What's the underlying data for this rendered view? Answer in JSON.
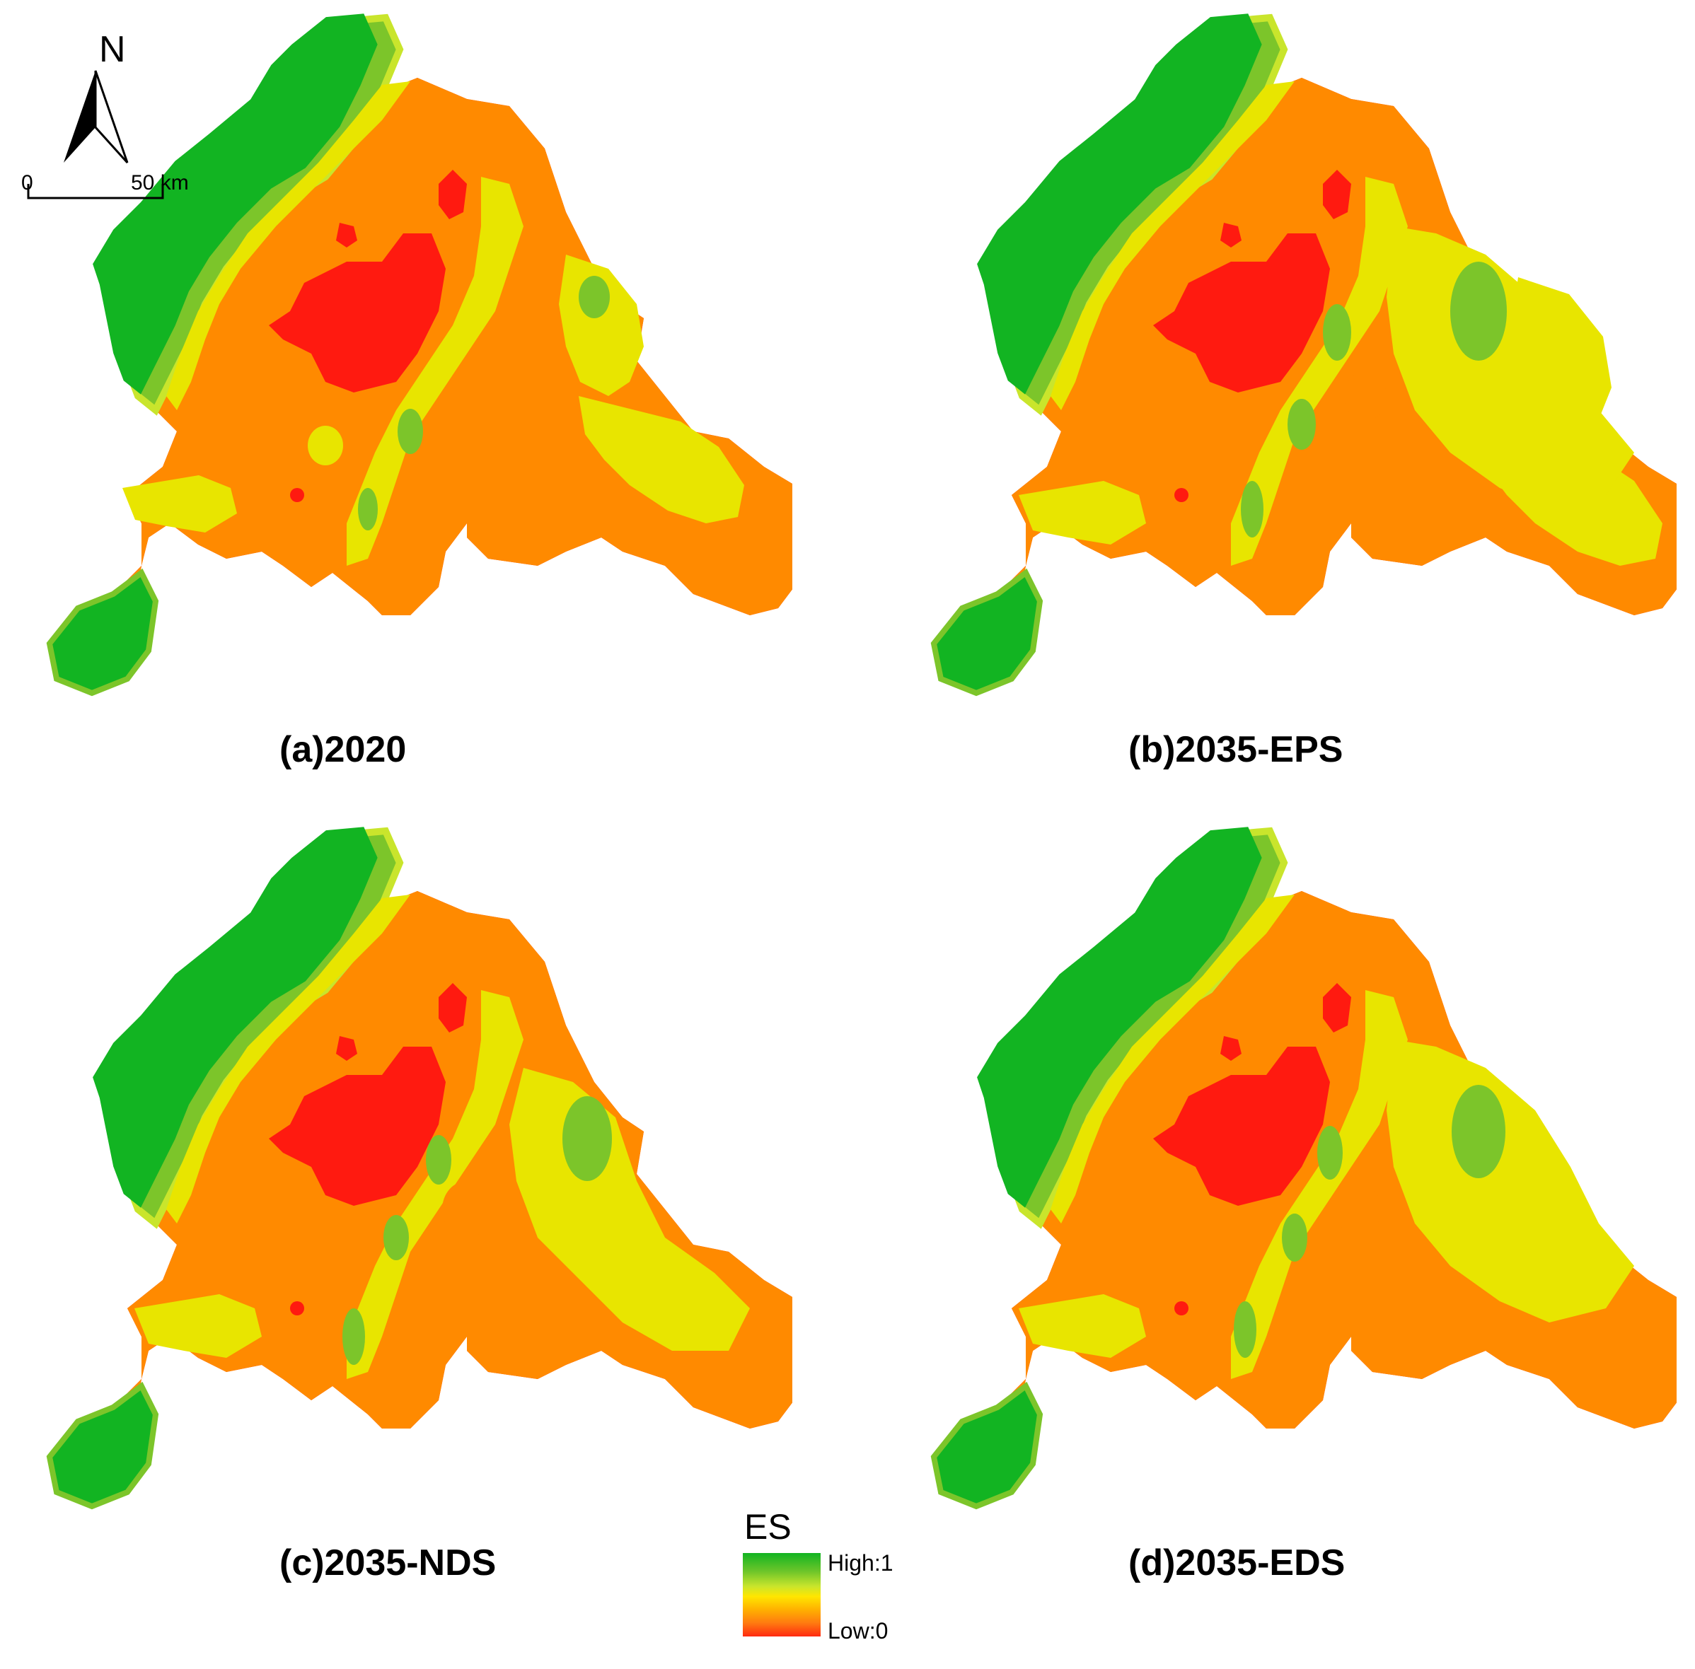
{
  "maps": [
    {
      "caption": "(a)2020"
    },
    {
      "caption": "(b)2035-EPS"
    },
    {
      "caption": "(c)2035-NDS"
    },
    {
      "caption": "(d)2035-EDS"
    }
  ],
  "north_arrow": {
    "letter": "N"
  },
  "scale_bar": {
    "start_label": "0",
    "end_label": "50 km"
  },
  "legend": {
    "title": "ES",
    "high_label": "High:1",
    "low_label": "Low:0",
    "colors": [
      "#12b422",
      "#6dc52a",
      "#c9e52c",
      "#ffe600",
      "#ffb000",
      "#ff7a10",
      "#ff2a10"
    ]
  }
}
